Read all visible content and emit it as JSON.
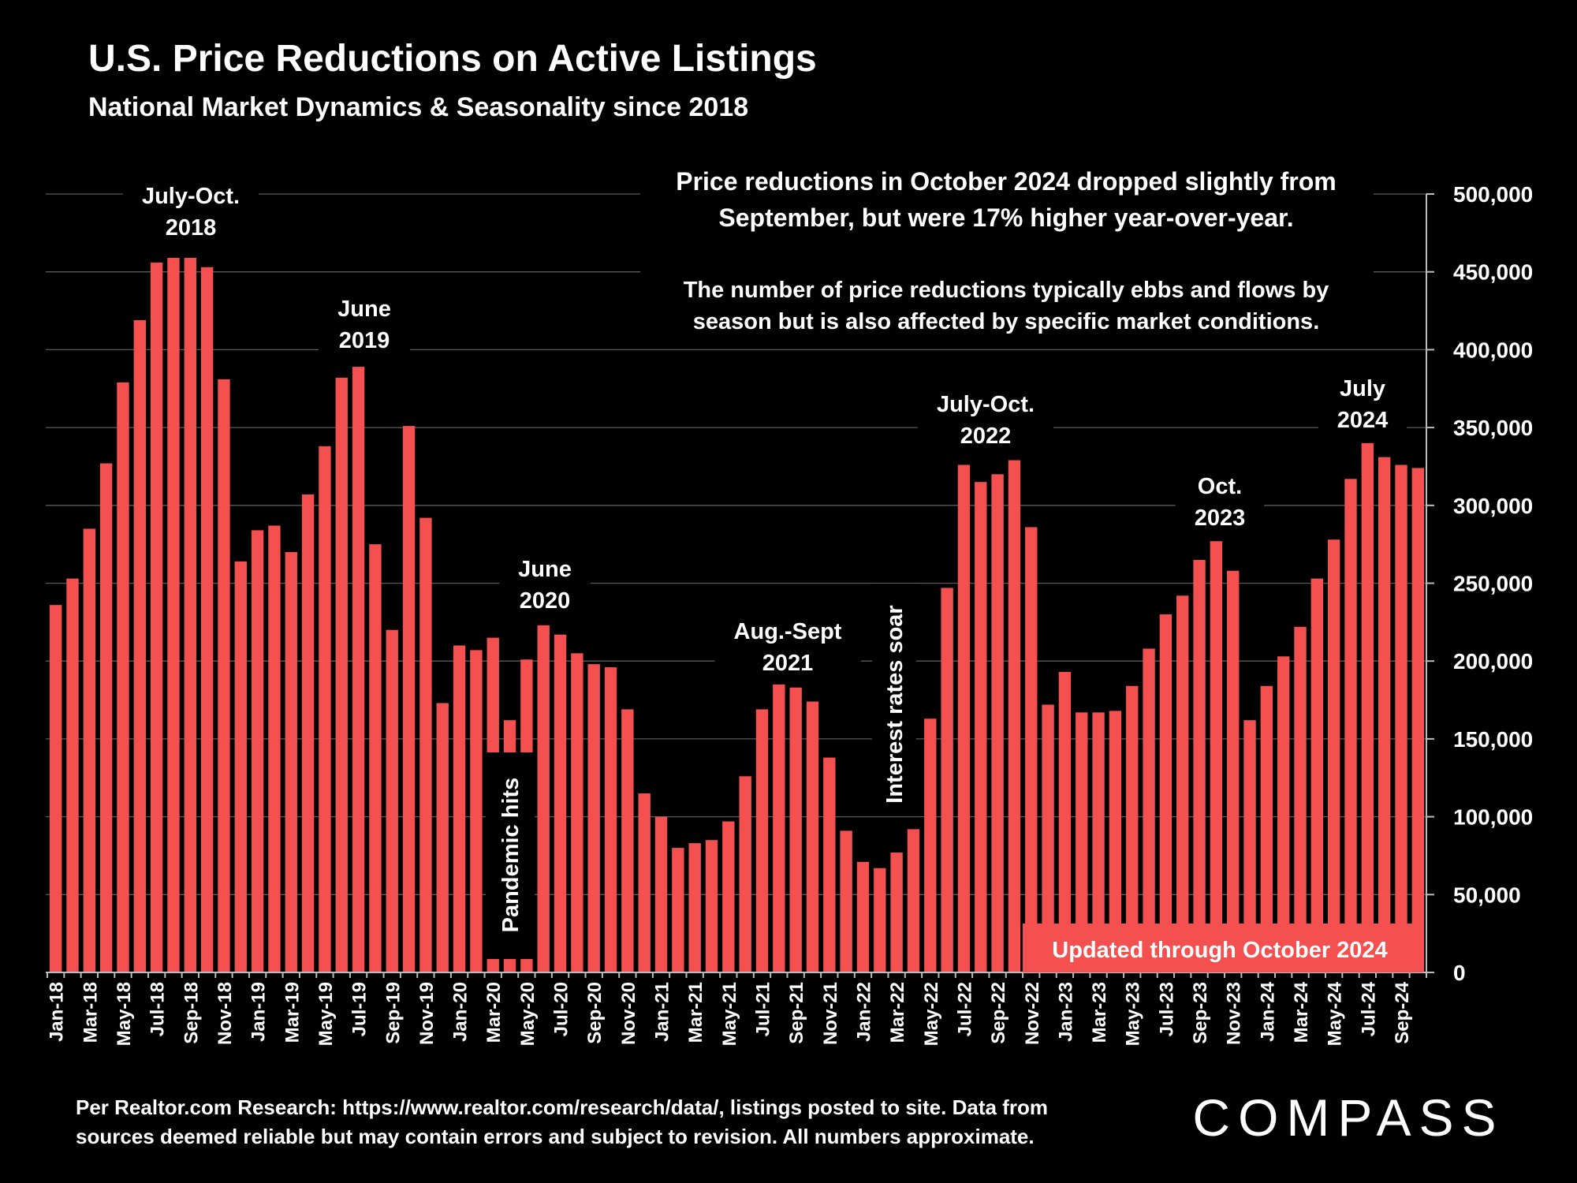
{
  "chart_data": {
    "type": "bar",
    "title": "U.S. Price Reductions on Active Listings",
    "subtitle": "National Market Dynamics & Seasonality since 2018",
    "headline": [
      "Price reductions in October 2024 dropped slightly from",
      "September, but were 17% higher year-over-year."
    ],
    "note": [
      "The number of price reductions typically ebbs and flows by",
      "season but is also affected by specific market conditions."
    ],
    "annotations": [
      {
        "lines": [
          "July-Oct.",
          "2018"
        ]
      },
      {
        "lines": [
          "June",
          "2019"
        ]
      },
      {
        "lines": [
          "June",
          "2020"
        ]
      },
      {
        "lines": [
          "Aug.-Sept",
          "2021"
        ]
      },
      {
        "lines": [
          "July-Oct.",
          "2022"
        ]
      },
      {
        "lines": [
          "Oct.",
          "2023"
        ]
      },
      {
        "lines": [
          "July",
          "2024"
        ]
      }
    ],
    "vertical_annotations": [
      "Pandemic hits",
      "Interest rates soar"
    ],
    "banner": "Updated through October 2024",
    "categories": [
      "Jan-18",
      null,
      "Mar-18",
      null,
      "May-18",
      null,
      "Jul-18",
      null,
      "Sep-18",
      null,
      "Nov-18",
      null,
      "Jan-19",
      null,
      "Mar-19",
      null,
      "May-19",
      null,
      "Jul-19",
      null,
      "Sep-19",
      null,
      "Nov-19",
      null,
      "Jan-20",
      null,
      "Mar-20",
      null,
      "May-20",
      null,
      "Jul-20",
      null,
      "Sep-20",
      null,
      "Nov-20",
      null,
      "Jan-21",
      null,
      "Mar-21",
      null,
      "May-21",
      null,
      "Jul-21",
      null,
      "Sep-21",
      null,
      "Nov-21",
      null,
      "Jan-22",
      null,
      "Mar-22",
      null,
      "May-22",
      null,
      "Jul-22",
      null,
      "Sep-22",
      null,
      "Nov-22",
      null,
      "Jan-23",
      null,
      "Mar-23",
      null,
      "May-23",
      null,
      "Jul-23",
      null,
      "Sep-23",
      null,
      "Nov-23",
      null,
      "Jan-24",
      null,
      "Mar-24",
      null,
      "May-24",
      null,
      "Jul-24",
      null,
      "Sep-24",
      null
    ],
    "values": [
      236000,
      253000,
      285000,
      327000,
      379000,
      419000,
      456000,
      459000,
      459000,
      453000,
      381000,
      264000,
      284000,
      287000,
      270000,
      307000,
      338000,
      382000,
      389000,
      275000,
      220000,
      351000,
      292000,
      173000,
      210000,
      207000,
      215000,
      162000,
      201000,
      223000,
      217000,
      205000,
      198000,
      196000,
      169000,
      115000,
      100000,
      80000,
      83000,
      85000,
      97000,
      126000,
      169000,
      185000,
      183000,
      174000,
      138000,
      91000,
      71000,
      67000,
      77000,
      92000,
      163000,
      247000,
      326000,
      315000,
      320000,
      329000,
      286000,
      172000,
      193000,
      167000,
      167000,
      168000,
      184000,
      208000,
      230000,
      242000,
      265000,
      277000,
      258000,
      162000,
      184000,
      203000,
      222000,
      253000,
      278000,
      317000,
      340000,
      331000,
      326000,
      324000
    ],
    "color": "#f4504f",
    "ylim": [
      0,
      500000
    ],
    "yticks": [
      0,
      {
        "value": 50000,
        "label": "50,000"
      },
      {
        "value": 100000,
        "label": "100,000"
      },
      {
        "value": 150000,
        "label": "150,000"
      },
      {
        "value": 200000,
        "label": "200,000"
      },
      {
        "value": 250000,
        "label": "250,000"
      },
      {
        "value": 300000,
        "label": "300,000"
      },
      {
        "value": 350000,
        "label": "350,000"
      },
      {
        "value": 400000,
        "label": "400,000"
      },
      {
        "value": 450000,
        "label": "450,000"
      },
      {
        "value": 500000,
        "label": "500,000"
      }
    ],
    "grid": true,
    "footnote": [
      "Per Realtor.com Research:  https://www.realtor.com/research/data/, listings posted to site. Data from",
      "sources deemed reliable but may contain errors and subject to revision. All numbers approximate."
    ],
    "logo": "COMPASS"
  }
}
